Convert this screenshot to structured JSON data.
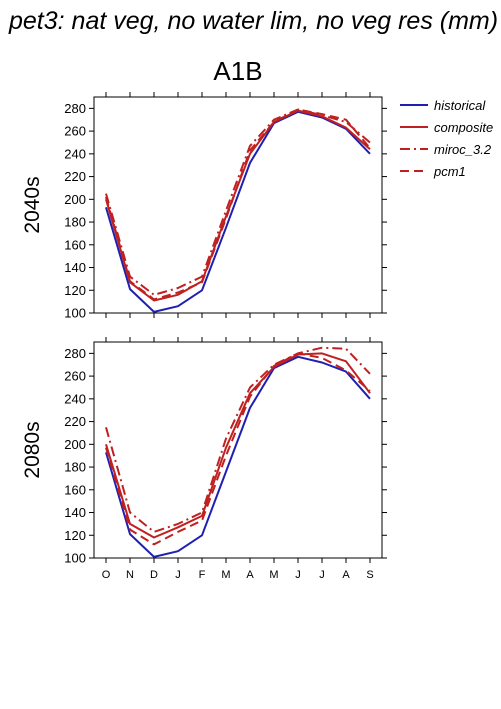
{
  "title": "pet3: nat veg, no water lim, no veg res (mm)",
  "chart_data": {
    "type": "line",
    "scenario": "A1B",
    "categories": [
      "O",
      "N",
      "D",
      "J",
      "F",
      "M",
      "A",
      "M",
      "J",
      "J",
      "A",
      "S"
    ],
    "yticks": [
      100,
      120,
      140,
      160,
      180,
      200,
      220,
      240,
      260,
      280
    ],
    "ylim": [
      100,
      290
    ],
    "legend": {
      "position": "top-right",
      "entries": [
        {
          "name": "historical",
          "color": "#2020b0",
          "dash": "solid"
        },
        {
          "name": "composite",
          "color": "#c02020",
          "dash": "solid"
        },
        {
          "name": "miroc_3.2",
          "color": "#c02020",
          "dash": "dashdot"
        },
        {
          "name": "pcm1",
          "color": "#c02020",
          "dash": "dashed"
        }
      ]
    },
    "panels": [
      {
        "label": "2040s",
        "series": [
          {
            "name": "historical",
            "values": [
              193,
              121,
              101,
              106,
              120,
              175,
              232,
              267,
              277,
              272,
              262,
              240
            ]
          },
          {
            "name": "composite",
            "values": [
              200,
              127,
              111,
              116,
              128,
              185,
              240,
              268,
              278,
              273,
              263,
              244
            ]
          },
          {
            "name": "miroc_3.2",
            "values": [
              205,
              132,
              116,
              122,
              132,
              190,
              247,
              270,
              279,
              274,
              268,
              250
            ]
          },
          {
            "name": "pcm1",
            "values": [
              202,
              128,
              112,
              118,
              127,
              183,
              243,
              268,
              279,
              275,
              270,
              245
            ]
          }
        ]
      },
      {
        "label": "2080s",
        "series": [
          {
            "name": "historical",
            "values": [
              193,
              121,
              101,
              106,
              120,
              176,
              232,
              267,
              277,
              272,
              264,
              240
            ]
          },
          {
            "name": "composite",
            "values": [
              200,
              130,
              118,
              127,
              137,
              197,
              245,
              268,
              279,
              280,
              273,
              245
            ]
          },
          {
            "name": "miroc_3.2",
            "values": [
              215,
              140,
              123,
              130,
              140,
              205,
              250,
              270,
              280,
              285,
              284,
              262
            ]
          },
          {
            "name": "pcm1",
            "values": [
              197,
              125,
              112,
              123,
              133,
              190,
              242,
              269,
              280,
              276,
              265,
              247
            ]
          }
        ]
      }
    ]
  }
}
